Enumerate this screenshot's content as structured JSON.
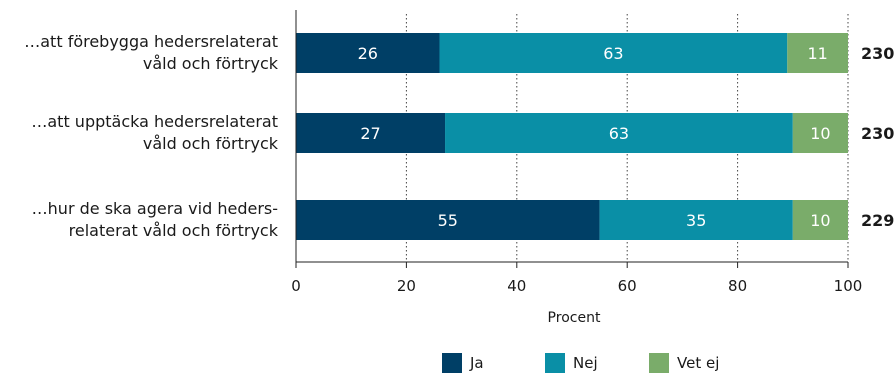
{
  "chart_data": {
    "type": "bar",
    "orientation": "horizontal",
    "stacked": true,
    "categories": [
      "…att förebygga hedersrelaterat våld och förtryck",
      "…att upptäcka hedersrelaterat våld och förtryck",
      "…hur de ska agera vid heders-relaterat våld och förtryck"
    ],
    "category_lines": [
      [
        "…att förebygga hedersrelaterat",
        "våld och förtryck"
      ],
      [
        "…att upptäcka hedersrelaterat",
        "våld och förtryck"
      ],
      [
        "…hur de ska agera vid heders-",
        "relaterat våld och förtryck"
      ]
    ],
    "series": [
      {
        "name": "Ja",
        "values": [
          26,
          27,
          55
        ],
        "color": "#003f66"
      },
      {
        "name": "Nej",
        "values": [
          63,
          63,
          35
        ],
        "color": "#0a8fa6"
      },
      {
        "name": "Vet ej",
        "values": [
          11,
          10,
          10
        ],
        "color": "#7aac6a"
      }
    ],
    "n_values": [
      "230",
      "230",
      "229"
    ],
    "xlabel": "Procent",
    "xlim": [
      0,
      100
    ],
    "xticks": [
      0,
      20,
      40,
      60,
      80,
      100
    ],
    "grid": "vertical dotted",
    "legend": "bottom"
  }
}
